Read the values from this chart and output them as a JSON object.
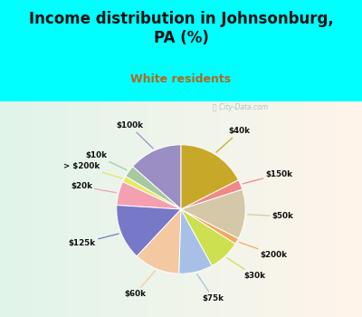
{
  "title": "Income distribution in Johnsonburg,\nPA (%)",
  "subtitle": "White residents",
  "title_color": "#111111",
  "subtitle_color": "#b06820",
  "bg_cyan": "#00ffff",
  "bg_chart_color": "#c8eedd",
  "labels": [
    "$100k",
    "$10k",
    "> $200k",
    "$20k",
    "$125k",
    "$60k",
    "$75k",
    "$30k",
    "$200k",
    "$50k",
    "$150k",
    "$40k"
  ],
  "sizes": [
    13.5,
    3.0,
    1.5,
    6.0,
    14.0,
    11.5,
    8.5,
    8.0,
    1.5,
    12.5,
    2.5,
    17.5
  ],
  "colors": [
    "#9b8ec4",
    "#a8c8a0",
    "#e8e860",
    "#f4a0b0",
    "#7878c8",
    "#f4c8a0",
    "#a8c0e8",
    "#cce050",
    "#f4a860",
    "#d4c8a8",
    "#f08888",
    "#c8a828"
  ],
  "startangle": 90,
  "watermark": "ⓘ City-Data.com"
}
